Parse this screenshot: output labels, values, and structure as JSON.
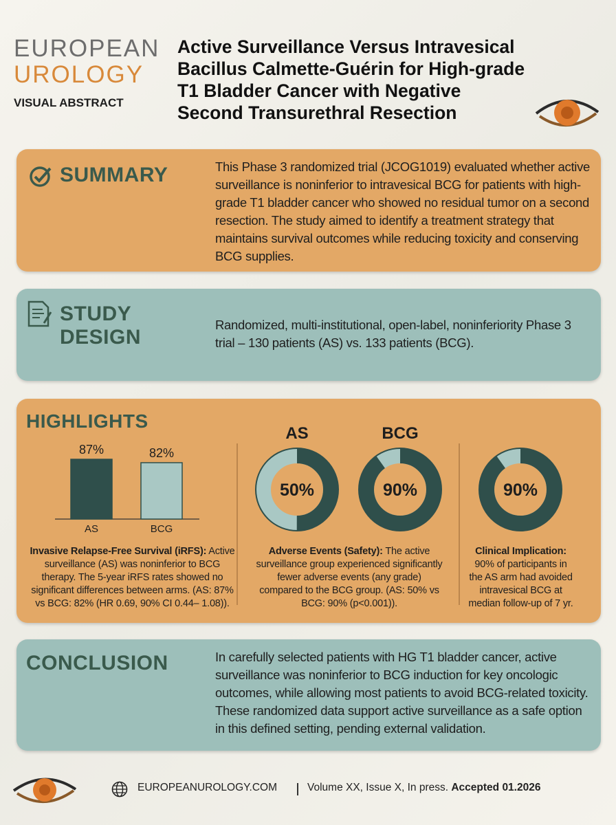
{
  "header": {
    "logo_line1": "EUROPEAN",
    "logo_line2": "UROLOGY",
    "logo_subtitle": "VISUAL ABSTRACT",
    "title_lines": [
      "Active Surveillance Versus Intravesical",
      "Bacillus Calmette-Guérin for High-grade",
      "T1 Bladder Cancer with Negative",
      "Second Transurethral Resection"
    ]
  },
  "summary": {
    "heading": "SUMMARY",
    "text": "This Phase 3 randomized trial (JCOG1019) evaluated whether active surveillance is noninferior to intravesical BCG for patients with high-grade T1 bladder cancer who showed no residual tumor on a second resection. The study aimed to identify a treatment strategy that maintains survival outcomes while reducing toxicity and conserving BCG supplies."
  },
  "study_design": {
    "heading": "STUDY DESIGN",
    "text": "Randomized, multi-institutional, open-label, noninferiority Phase 3 trial – 130 patients (AS) vs. 133 patients (BCG)."
  },
  "highlights": {
    "heading": "HIGHLIGHTS",
    "charts": [
      {
        "type": "bar",
        "categories": [
          "AS",
          "BCG"
        ],
        "values": [
          87,
          82
        ],
        "value_labels": [
          "87%",
          "82%"
        ],
        "colors": [
          "#2f4f4b",
          "#a9c8c4"
        ],
        "ylim": [
          0,
          100
        ],
        "caption_title": "Invasive Relapse-Free Survival (iRFS):",
        "caption_text": "Active surveillance (AS) was noninferior to BCG therapy. The 5-year iRFS rates showed no significant differences between arms. (AS: 87% vs BCG: 82% (HR 0.69, 90% CI 0.44– 1.08))."
      },
      {
        "type": "donut",
        "titles": [
          "AS",
          "BCG"
        ],
        "values": [
          50,
          90
        ],
        "value_labels": [
          "50%",
          "90%"
        ],
        "color": "#2f4f4b",
        "rest_color": "#a9c8c4",
        "ylim": [
          0,
          100
        ],
        "caption_title": "Adverse Events (Safety):",
        "caption_text": "The active surveillance group experienced significantly fewer adverse events (any grade) compared to the BCG group. (AS: 50% vs BCG: 90% (p<0.001))."
      },
      {
        "type": "donut",
        "values": [
          90
        ],
        "value_labels": [
          "90%"
        ],
        "color": "#2f4f4b",
        "rest_color": "#a9c8c4",
        "ylim": [
          0,
          100
        ],
        "caption_title": "Clinical Implication:",
        "caption_text": "90% of participants in the AS arm had avoided intravesical BCG at median follow-up of 7 yr."
      }
    ]
  },
  "conclusion": {
    "heading": "CONCLUSION",
    "text": "In carefully selected patients with HG T1 bladder cancer, active surveillance was noninferior to BCG induction for key oncologic outcomes, while allowing most patients to avoid BCG-related toxicity. These randomized data support active surveillance as a safe option in this defined setting, pending external validation."
  },
  "footer": {
    "website": "EUROPEANUROLOGY.COM",
    "citation": "Volume XX, Issue X, In press.",
    "accepted": "Accepted 01.2026"
  }
}
